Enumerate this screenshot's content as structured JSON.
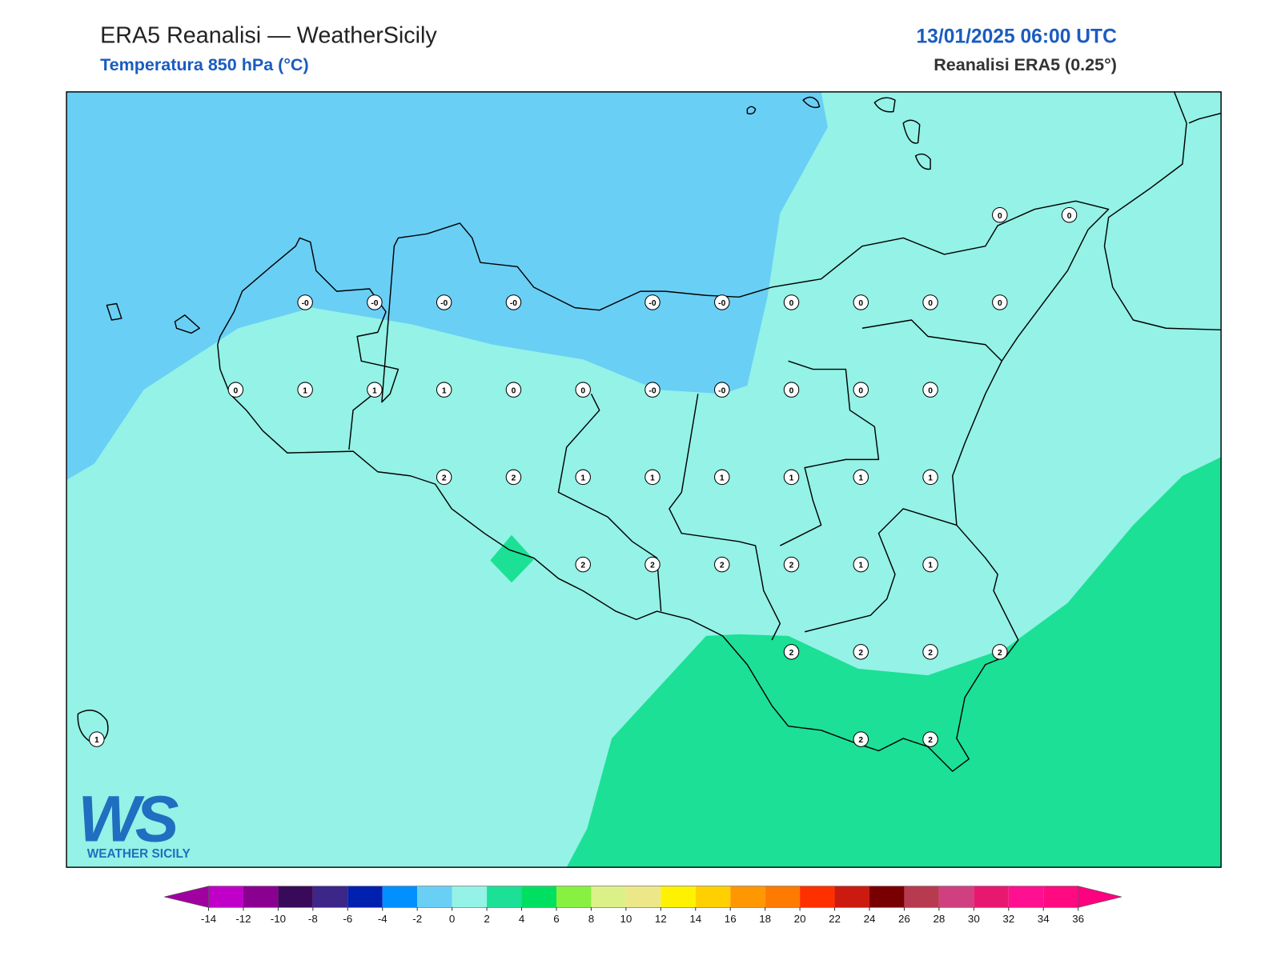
{
  "header": {
    "title": "ERA5 Reanalisi — WeatherSicily",
    "subtitle": "Temperatura 850 hPa (°C)",
    "date": "13/01/2025 06:00 UTC",
    "source": "Reanalisi ERA5 (0.25°)"
  },
  "stations": {
    "rows": [
      [
        null,
        null,
        null,
        null,
        null,
        null,
        null,
        null,
        null,
        null,
        null,
        null,
        null,
        "0",
        "0"
      ],
      [
        null,
        null,
        null,
        "-0",
        "-0",
        "-0",
        "-0",
        null,
        "-0",
        "-0",
        "0",
        "0",
        "0",
        "0",
        null
      ],
      [
        null,
        null,
        "0",
        "1",
        "1",
        "1",
        "0",
        "0",
        "-0",
        "-0",
        "0",
        "0",
        "0",
        null,
        null
      ],
      [
        null,
        null,
        null,
        null,
        null,
        "2",
        "2",
        "1",
        "1",
        "1",
        "1",
        "1",
        "1",
        null,
        null
      ],
      [
        null,
        null,
        null,
        null,
        null,
        null,
        null,
        "2",
        "2",
        "2",
        "2",
        "1",
        "1",
        null,
        null
      ],
      [
        null,
        null,
        null,
        null,
        null,
        null,
        null,
        null,
        null,
        null,
        "2",
        "2",
        "2",
        "2",
        null
      ],
      [
        "1",
        null,
        null,
        null,
        null,
        null,
        null,
        null,
        null,
        null,
        null,
        "2",
        "2",
        null,
        null
      ]
    ]
  },
  "colorbar": {
    "ticks": [
      -14,
      -12,
      -10,
      -8,
      -6,
      -4,
      -2,
      0,
      2,
      4,
      6,
      8,
      10,
      12,
      14,
      16,
      18,
      20,
      22,
      24,
      26,
      28,
      30,
      32,
      34,
      36
    ],
    "colors": [
      "#c000c8",
      "#8a0090",
      "#3a0a5a",
      "#3c2688",
      "#0020b0",
      "#0090ff",
      "#6acff5",
      "#94f2e6",
      "#1ce096",
      "#00e060",
      "#88f040",
      "#dcf088",
      "#ece88a",
      "#fff200",
      "#ffd000",
      "#ff9800",
      "#ff7a00",
      "#ff3000",
      "#cc1a10",
      "#780000",
      "#b83a50",
      "#d04080",
      "#e81870",
      "#ff1090",
      "#ff0a80"
    ],
    "under": "#a000a0",
    "over": "#ff0080"
  },
  "logo": {
    "mark": "WS",
    "text": "WEATHER SICILY"
  }
}
